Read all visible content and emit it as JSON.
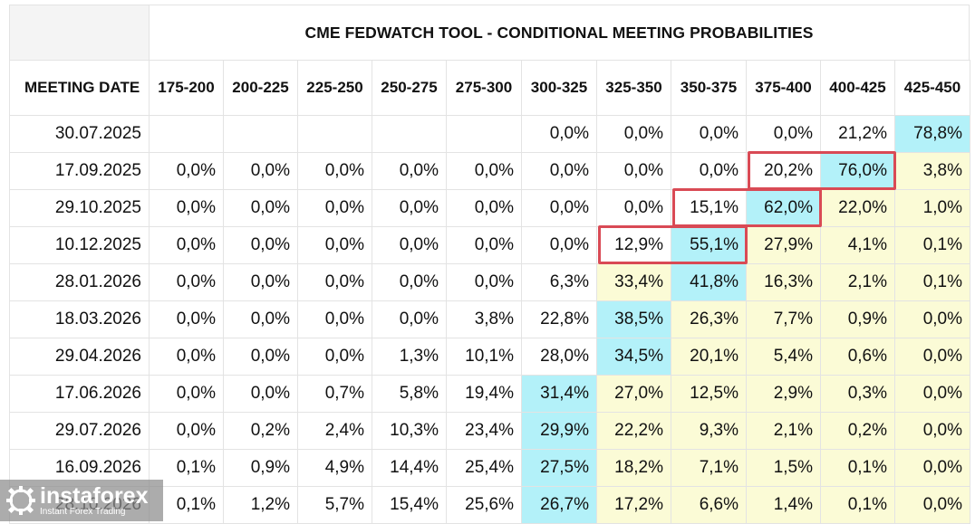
{
  "title": "CME FEDWATCH TOOL - CONDITIONAL MEETING PROBABILITIES",
  "meeting_date_label": "MEETING DATE",
  "ranges": [
    "175-200",
    "200-225",
    "225-250",
    "250-275",
    "275-300",
    "300-325",
    "325-350",
    "350-375",
    "375-400",
    "400-425",
    "425-450"
  ],
  "rows": [
    {
      "date": "30.07.2025",
      "values": [
        "",
        "",
        "",
        "",
        "",
        "0,0%",
        "0,0%",
        "0,0%",
        "0,0%",
        "21,2%",
        "78,8%"
      ],
      "styles": [
        "",
        "",
        "",
        "",
        "",
        "",
        "",
        "",
        "",
        "",
        "b"
      ]
    },
    {
      "date": "17.09.2025",
      "values": [
        "0,0%",
        "0,0%",
        "0,0%",
        "0,0%",
        "0,0%",
        "0,0%",
        "0,0%",
        "0,0%",
        "20,2%",
        "76,0%",
        "3,8%"
      ],
      "styles": [
        "",
        "",
        "",
        "",
        "",
        "",
        "",
        "",
        "",
        "b",
        "y"
      ]
    },
    {
      "date": "29.10.2025",
      "values": [
        "0,0%",
        "0,0%",
        "0,0%",
        "0,0%",
        "0,0%",
        "0,0%",
        "0,0%",
        "15,1%",
        "62,0%",
        "22,0%",
        "1,0%"
      ],
      "styles": [
        "",
        "",
        "",
        "",
        "",
        "",
        "",
        "",
        "b",
        "y",
        "y"
      ]
    },
    {
      "date": "10.12.2025",
      "values": [
        "0,0%",
        "0,0%",
        "0,0%",
        "0,0%",
        "0,0%",
        "0,0%",
        "12,9%",
        "55,1%",
        "27,9%",
        "4,1%",
        "0,1%"
      ],
      "styles": [
        "",
        "",
        "",
        "",
        "",
        "",
        "",
        "b",
        "y",
        "y",
        "y"
      ]
    },
    {
      "date": "28.01.2026",
      "values": [
        "0,0%",
        "0,0%",
        "0,0%",
        "0,0%",
        "0,0%",
        "6,3%",
        "33,4%",
        "41,8%",
        "16,3%",
        "2,1%",
        "0,1%"
      ],
      "styles": [
        "",
        "",
        "",
        "",
        "",
        "",
        "y",
        "b",
        "y",
        "y",
        "y"
      ]
    },
    {
      "date": "18.03.2026",
      "values": [
        "0,0%",
        "0,0%",
        "0,0%",
        "0,0%",
        "3,8%",
        "22,8%",
        "38,5%",
        "26,3%",
        "7,7%",
        "0,9%",
        "0,0%"
      ],
      "styles": [
        "",
        "",
        "",
        "",
        "",
        "",
        "b",
        "y",
        "y",
        "y",
        "y"
      ]
    },
    {
      "date": "29.04.2026",
      "values": [
        "0,0%",
        "0,0%",
        "0,0%",
        "1,3%",
        "10,1%",
        "28,0%",
        "34,5%",
        "20,1%",
        "5,4%",
        "0,6%",
        "0,0%"
      ],
      "styles": [
        "",
        "",
        "",
        "",
        "",
        "",
        "b",
        "y",
        "y",
        "y",
        "y"
      ]
    },
    {
      "date": "17.06.2026",
      "values": [
        "0,0%",
        "0,0%",
        "0,7%",
        "5,8%",
        "19,4%",
        "31,4%",
        "27,0%",
        "12,5%",
        "2,9%",
        "0,3%",
        "0,0%"
      ],
      "styles": [
        "",
        "",
        "",
        "",
        "",
        "b",
        "y",
        "y",
        "y",
        "y",
        "y"
      ]
    },
    {
      "date": "29.07.2026",
      "values": [
        "0,0%",
        "0,2%",
        "2,4%",
        "10,3%",
        "23,4%",
        "29,9%",
        "22,2%",
        "9,3%",
        "2,1%",
        "0,2%",
        "0,0%"
      ],
      "styles": [
        "",
        "",
        "",
        "",
        "",
        "b",
        "y",
        "y",
        "y",
        "y",
        "y"
      ]
    },
    {
      "date": "16.09.2026",
      "values": [
        "0,1%",
        "0,9%",
        "4,9%",
        "14,4%",
        "25,4%",
        "27,5%",
        "18,2%",
        "7,1%",
        "1,5%",
        "0,1%",
        "0,0%"
      ],
      "styles": [
        "",
        "",
        "",
        "",
        "",
        "b",
        "y",
        "y",
        "y",
        "y",
        "y"
      ]
    },
    {
      "date": "28.10.2026",
      "values": [
        "0,1%",
        "1,2%",
        "5,7%",
        "15,4%",
        "25,6%",
        "26,7%",
        "17,2%",
        "6,6%",
        "1,4%",
        "0,1%",
        "0,0%"
      ],
      "styles": [
        "",
        "",
        "",
        "",
        "",
        "b",
        "y",
        "y",
        "y",
        "y",
        "y"
      ]
    }
  ],
  "highlights": [
    {
      "row": 1,
      "col_start": 8,
      "col_end": 9
    },
    {
      "row": 2,
      "col_start": 7,
      "col_end": 8
    },
    {
      "row": 3,
      "col_start": 6,
      "col_end": 7
    }
  ],
  "colors": {
    "blue": "#b3f1f9",
    "yellow": "#fbfbd6",
    "highlight": "#d94a55"
  },
  "watermark": {
    "brand": "instaforex",
    "tagline": "Instant Forex Trading"
  }
}
